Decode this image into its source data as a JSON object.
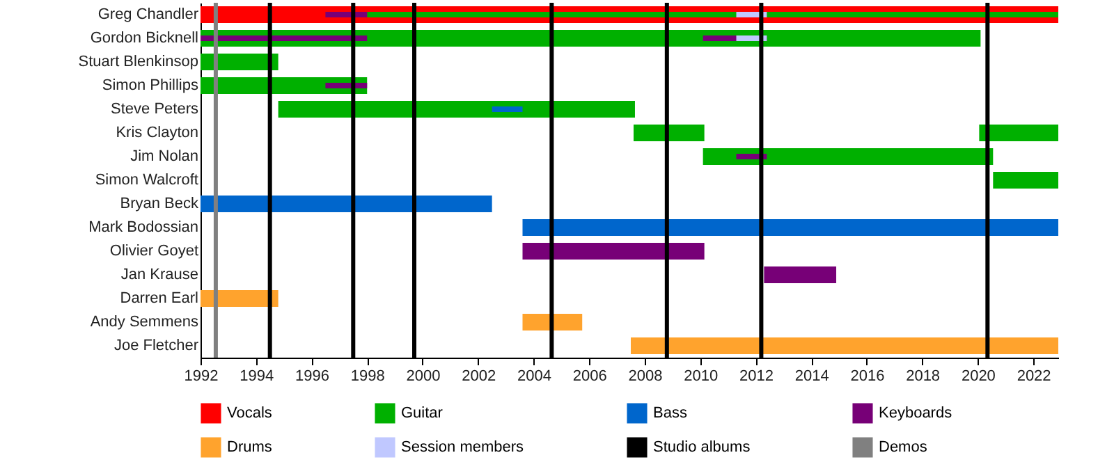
{
  "chart_data": {
    "type": "bar",
    "orientation": "horizontal",
    "categories": [
      "Greg Chandler",
      "Gordon Bicknell",
      "Stuart Blenkinsop",
      "Simon Phillips",
      "Steve Peters",
      "Kris Clayton",
      "Jim Nolan",
      "Simon Walcroft",
      "Bryan Beck",
      "Mark Bodossian",
      "Olivier Goyet",
      "Jan Krause",
      "Darren Earl",
      "Andy Semmens",
      "Joe Fletcher"
    ],
    "xlim": [
      1992,
      2022.9
    ],
    "xticks": [
      1992,
      1994,
      1996,
      1998,
      2000,
      2002,
      2004,
      2006,
      2008,
      2010,
      2012,
      2014,
      2016,
      2018,
      2020,
      2022
    ],
    "legend": "bottom",
    "series": [
      {
        "name": "Vocals",
        "color": "#ff0000",
        "base": [
          1992,
          null,
          null,
          null,
          null,
          null,
          null,
          null,
          null,
          null,
          null,
          null,
          null,
          null,
          null
        ],
        "values": [
          30.9,
          null,
          null,
          null,
          null,
          null,
          null,
          null,
          null,
          null,
          null,
          null,
          null,
          null,
          null
        ]
      },
      {
        "name": "Guitar",
        "color": "#00b000",
        "base": [
          1998,
          1992,
          1992,
          1992,
          1994.8,
          2007.6,
          2010.1,
          2020.55,
          null,
          null,
          null,
          null,
          null,
          null,
          null
        ],
        "values": [
          24.9,
          28.1,
          2.8,
          6,
          12.85,
          2.55,
          10.45,
          2.35,
          null,
          null,
          null,
          null,
          null,
          null,
          null
        ]
      },
      {
        "color": "#00b000",
        "base": [
          null,
          null,
          null,
          null,
          null,
          2020.05,
          null,
          null,
          null,
          null,
          null,
          null,
          null,
          null,
          null
        ],
        "values": [
          null,
          null,
          null,
          null,
          null,
          2.85,
          null,
          null,
          null,
          null,
          null,
          null,
          null,
          null,
          null
        ]
      },
      {
        "name": "Bass",
        "color": "#0066cc",
        "base": [
          null,
          null,
          null,
          null,
          2002.5,
          null,
          null,
          null,
          1992,
          2003.6,
          null,
          null,
          null,
          null,
          null
        ],
        "values": [
          null,
          null,
          null,
          null,
          1.1,
          null,
          null,
          null,
          10.5,
          19.3,
          null,
          null,
          null,
          null,
          null
        ]
      },
      {
        "name": "Keyboards",
        "color": "#770077",
        "base": [
          1996.5,
          1992,
          null,
          1996.5,
          null,
          null,
          2011.3,
          null,
          null,
          null,
          2003.6,
          2012.3,
          null,
          null,
          null
        ],
        "values": [
          1.5,
          6,
          null,
          1.5,
          null,
          null,
          1.1,
          null,
          null,
          null,
          6.55,
          2.6,
          null,
          null,
          null
        ]
      },
      {
        "color": "#770077",
        "base": [
          null,
          2010.1,
          null,
          null,
          null,
          null,
          null,
          null,
          null,
          null,
          null,
          null,
          null,
          null,
          null
        ],
        "values": [
          null,
          2.3,
          null,
          null,
          null,
          null,
          null,
          null,
          null,
          null,
          null,
          null,
          null,
          null,
          null
        ]
      },
      {
        "name": "Drums",
        "color": "#ffa32d",
        "base": [
          null,
          null,
          null,
          null,
          null,
          null,
          null,
          null,
          null,
          null,
          null,
          null,
          1992,
          2003.6,
          2007.5
        ],
        "values": [
          null,
          null,
          null,
          null,
          null,
          null,
          null,
          null,
          null,
          null,
          null,
          null,
          2.8,
          2.15,
          15.4
        ]
      },
      {
        "name": "Session members",
        "color": "#c0c8ff",
        "base": [
          2011.3,
          2011.3,
          null,
          null,
          null,
          null,
          null,
          null,
          null,
          null,
          null,
          null,
          null,
          null,
          null
        ],
        "values": [
          1.1,
          1.1,
          null,
          null,
          null,
          null,
          null,
          null,
          null,
          null,
          null,
          null,
          null,
          null,
          null
        ]
      }
    ],
    "ref_lines": [
      {
        "axis": "x",
        "value": 1994.5,
        "label": "Studio albums",
        "color": "#000000"
      },
      {
        "axis": "x",
        "value": 1997.5,
        "color": "#000000"
      },
      {
        "axis": "x",
        "value": 1999.7,
        "color": "#000000"
      },
      {
        "axis": "x",
        "value": 2004.65,
        "color": "#000000"
      },
      {
        "axis": "x",
        "value": 2008.8,
        "color": "#000000"
      },
      {
        "axis": "x",
        "value": 2012.2,
        "color": "#000000"
      },
      {
        "axis": "x",
        "value": 2020.35,
        "color": "#000000"
      },
      {
        "axis": "x",
        "value": 1992.55,
        "label": "Demos",
        "color": "#808080"
      }
    ]
  }
}
